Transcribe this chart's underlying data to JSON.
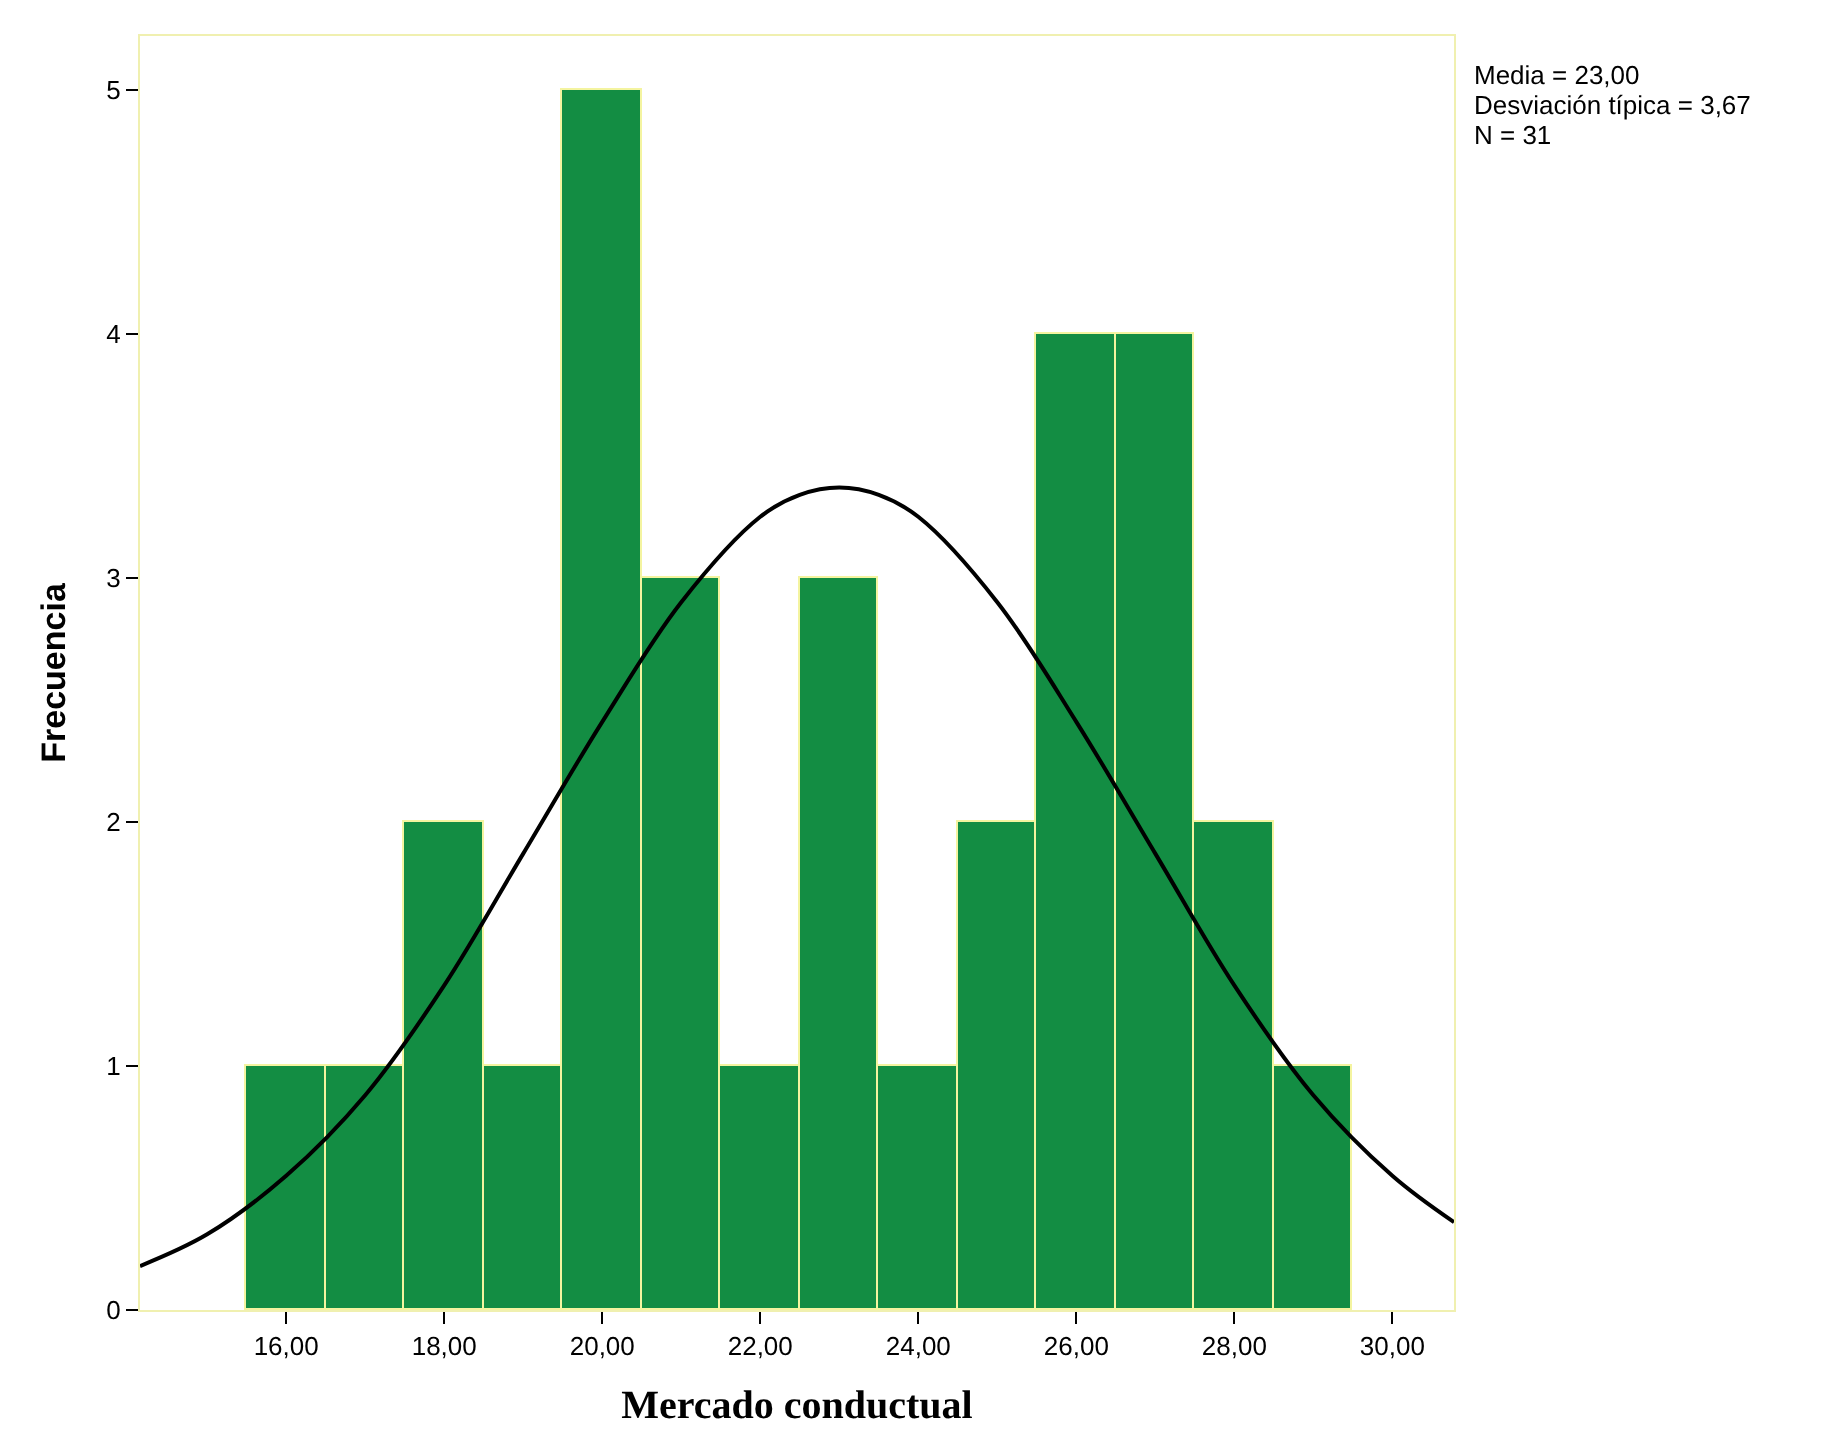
{
  "chart_data": {
    "type": "histogram",
    "xlabel": "Mercado conductual",
    "ylabel": "Frecuencia",
    "bins": [
      15.5,
      16.5,
      17.5,
      18.5,
      19.5,
      20.5,
      21.5,
      22.5,
      23.5,
      24.5,
      25.5,
      26.5,
      27.5,
      28.5,
      29.5
    ],
    "values": [
      1,
      1,
      2,
      1,
      5,
      3,
      1,
      3,
      1,
      2,
      4,
      4,
      2,
      1
    ],
    "color": "#138d43",
    "series": [
      {
        "type": "line",
        "color": "#000000",
        "x": [
          14.15,
          15,
          16,
          17,
          18,
          19,
          20,
          21,
          22,
          22.5,
          23,
          23.5,
          24,
          25,
          26,
          27,
          28,
          29,
          30,
          30.78
        ],
        "values": [
          0.18,
          0.31,
          0.55,
          0.88,
          1.33,
          1.87,
          2.41,
          2.9,
          3.25,
          3.34,
          3.37,
          3.34,
          3.25,
          2.9,
          2.41,
          1.87,
          1.33,
          0.88,
          0.55,
          0.36
        ]
      }
    ],
    "xlim": [
      14.15,
      30.78
    ],
    "xticks": [
      {
        "value": 16,
        "label": "16,00"
      },
      {
        "value": 18,
        "label": "18,00"
      },
      {
        "value": 20,
        "label": "20,00"
      },
      {
        "value": 22,
        "label": "22,00"
      },
      {
        "value": 24,
        "label": "24,00"
      },
      {
        "value": 26,
        "label": "26,00"
      },
      {
        "value": 28,
        "label": "28,00"
      },
      {
        "value": 30,
        "label": "30,00"
      }
    ],
    "ylim": [
      0,
      5.22
    ],
    "yticks": [
      0,
      1,
      2,
      3,
      4,
      5
    ],
    "annotations": [
      "Media = 23,00",
      "Desviación típica = 3,67",
      "N = 31"
    ]
  }
}
